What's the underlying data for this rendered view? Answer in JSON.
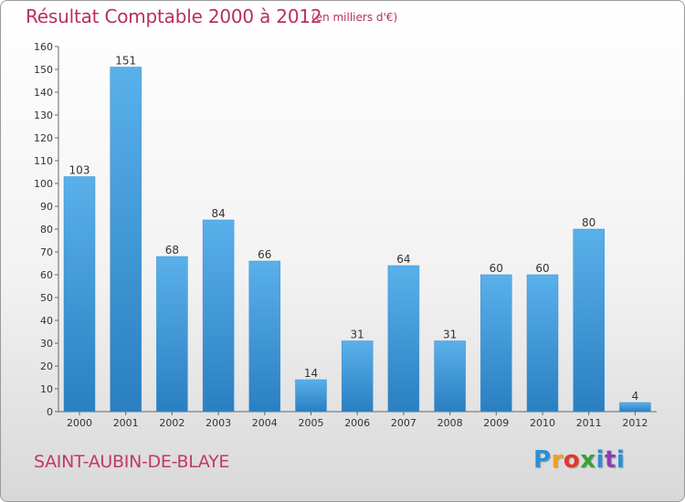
{
  "chart_data": {
    "type": "bar",
    "title": "Résultat Comptable 2000 à 2012",
    "unit_note": "(en milliers d'€)",
    "categories": [
      "2000",
      "2001",
      "2002",
      "2003",
      "2004",
      "2005",
      "2006",
      "2007",
      "2008",
      "2009",
      "2010",
      "2011",
      "2012"
    ],
    "values": [
      103,
      151,
      68,
      84,
      66,
      14,
      31,
      64,
      31,
      60,
      60,
      80,
      4
    ],
    "ylim": [
      0,
      160
    ],
    "yticks": [
      0,
      10,
      20,
      30,
      40,
      50,
      60,
      70,
      80,
      90,
      100,
      110,
      120,
      130,
      140,
      150,
      160
    ],
    "xlabel": "",
    "ylabel": "",
    "grid": false,
    "bar_color_light": "#5ab0ea",
    "bar_color_dark": "#2a7fc1"
  },
  "footer": {
    "commune": "SAINT-AUBIN-DE-BLAYE",
    "logo": [
      "P",
      "r",
      "o",
      "x",
      "i",
      "t",
      "i"
    ]
  }
}
